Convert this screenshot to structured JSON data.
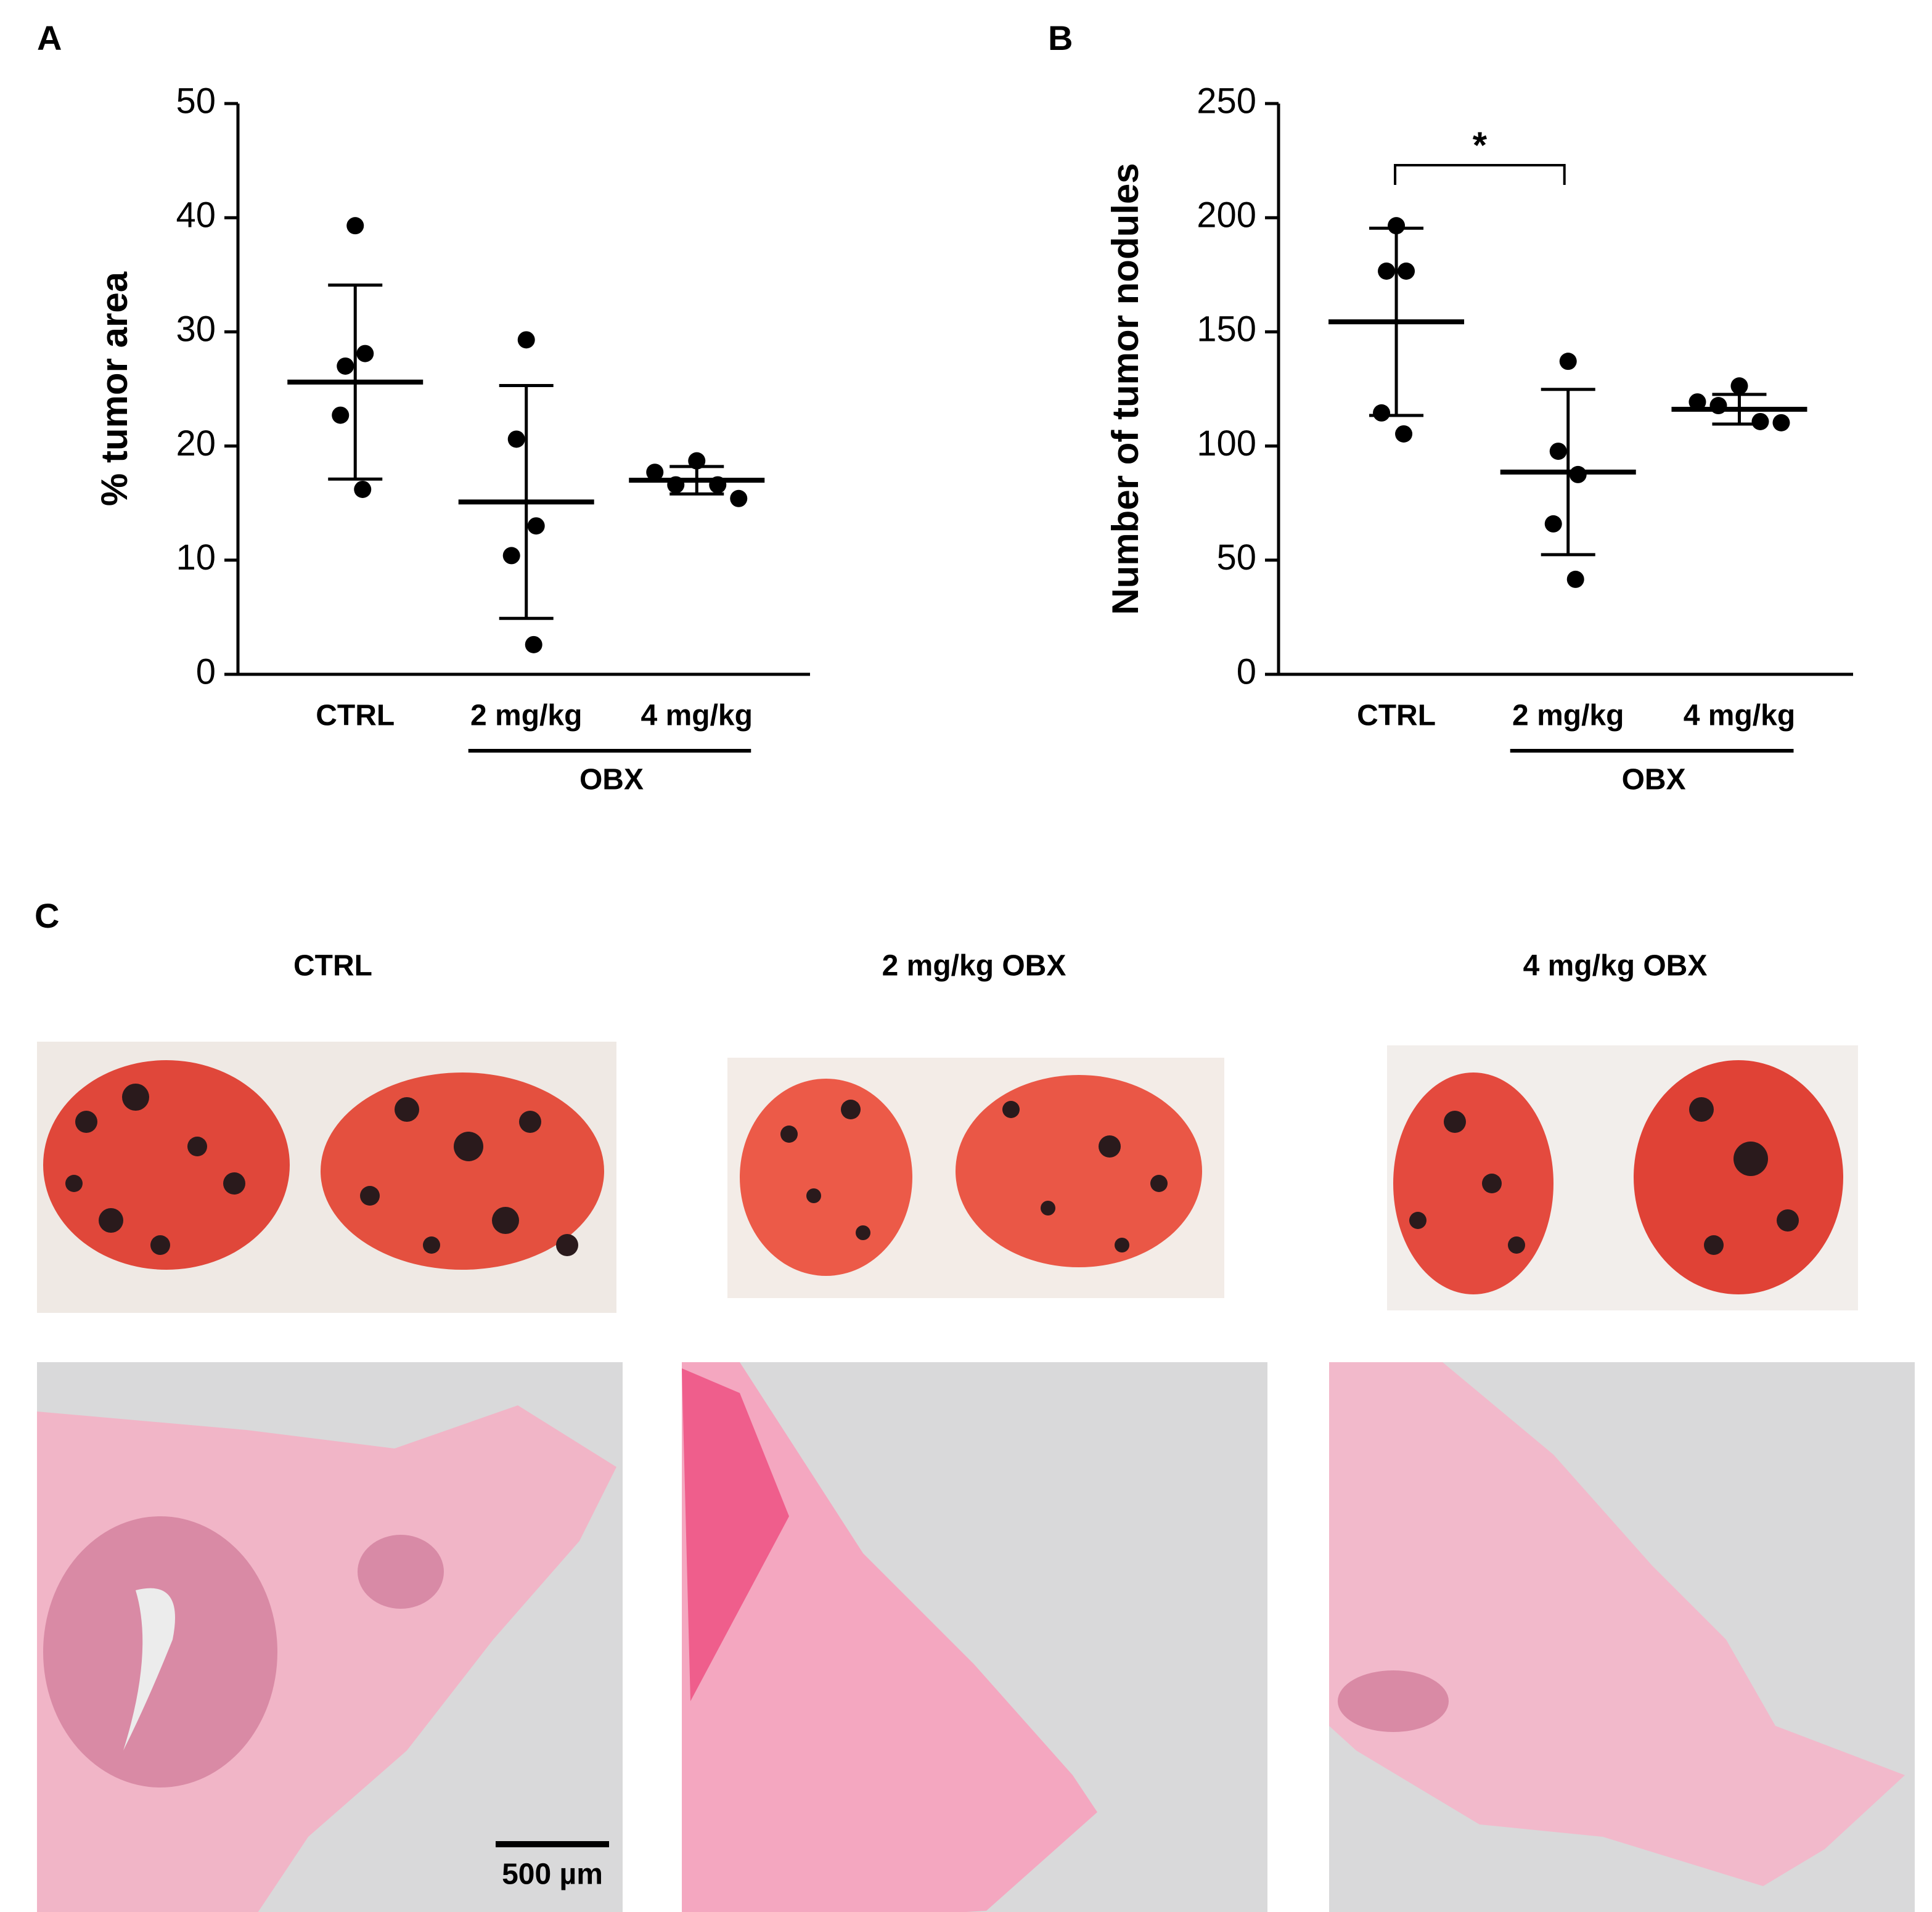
{
  "chart_data": [
    {
      "type": "dot",
      "panel_label": "A",
      "y_label": "% tumor area",
      "categories": [
        "CTRL",
        "2 mg/kg",
        "4 mg/kg"
      ],
      "group_label": "OBX",
      "points": [
        [
          39.3,
          27.0,
          28.1,
          22.7,
          16.2
        ],
        [
          29.3,
          20.6,
          13.0,
          10.4,
          2.6
        ],
        [
          17.7,
          16.6,
          18.7,
          16.6,
          15.4
        ]
      ],
      "means": [
        25.6,
        15.1,
        17.0
      ],
      "sds": [
        8.5,
        10.2,
        1.2
      ],
      "ylim": [
        0,
        50
      ],
      "yticks": [
        0,
        10,
        20,
        30,
        40,
        50
      ],
      "color": "#000000"
    },
    {
      "type": "dot",
      "panel_label": "B",
      "y_label": "Number of tumor nodules",
      "categories": [
        "CTRL",
        "2 mg/kg",
        "4 mg/kg"
      ],
      "group_label": "OBX",
      "annotation": "*",
      "points": [
        [
          196.5,
          176.6,
          176.6,
          114.5,
          105.3
        ],
        [
          137.1,
          97.7,
          87.5,
          65.9,
          41.6
        ],
        [
          119.3,
          117.7,
          126.3,
          110.7,
          110.2
        ]
      ],
      "means": [
        154.4,
        88.6,
        116.1
      ],
      "sds": [
        41.0,
        36.2,
        6.5
      ],
      "ylim": [
        0,
        250
      ],
      "yticks": [
        0,
        50,
        100,
        150,
        200,
        250
      ],
      "color": "#000000"
    }
  ],
  "panel_c": {
    "label": "C",
    "columns": [
      "CTRL",
      "2 mg/kg OBX",
      "4 mg/kg OBX"
    ],
    "scale_bar": "500 µm"
  }
}
